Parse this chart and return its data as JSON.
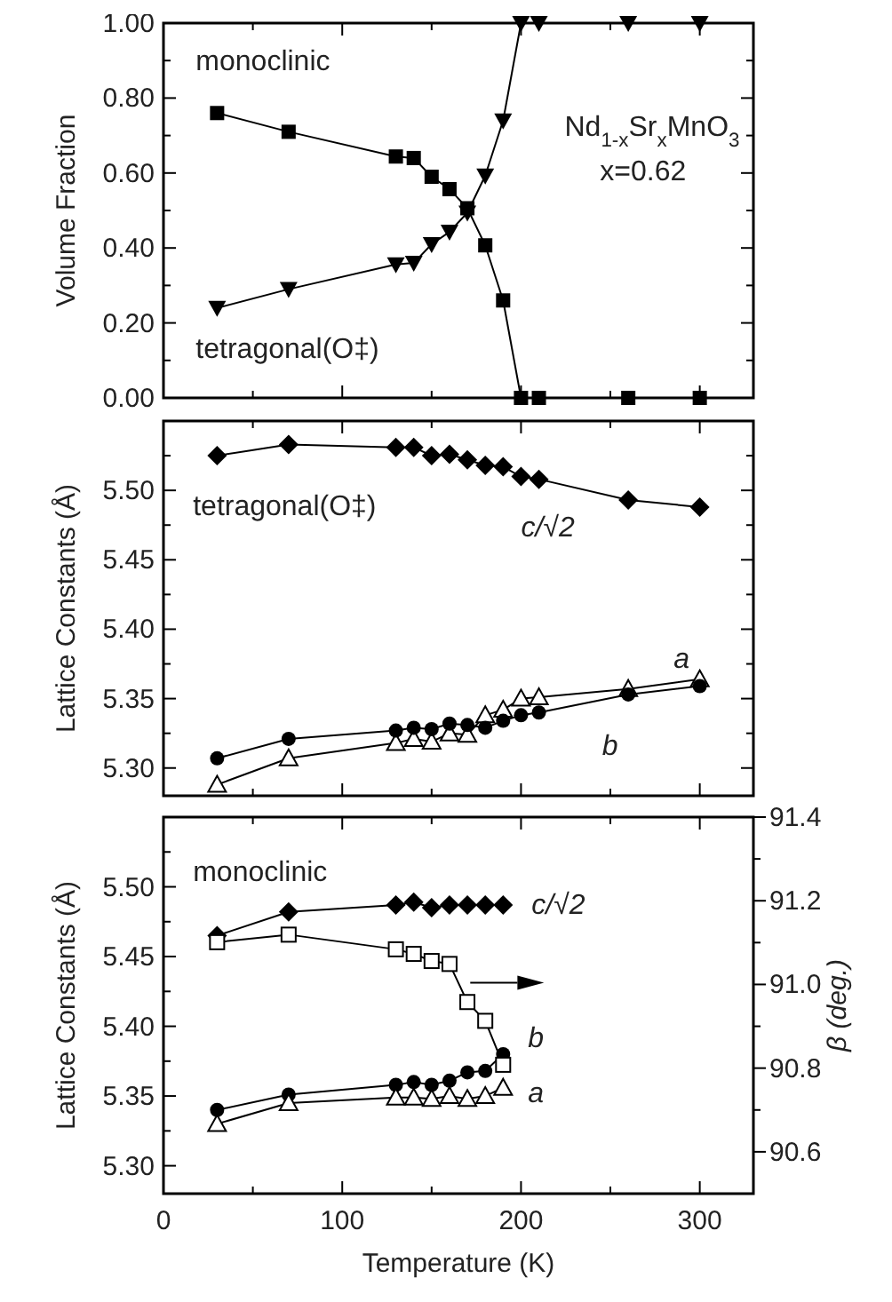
{
  "chart_data": [
    {
      "type": "line",
      "ylabel": "Volume Fraction",
      "xlim": [
        0,
        330
      ],
      "ylim": [
        0,
        1
      ],
      "tick_labels": "y",
      "xticks": [
        {
          "value": 0,
          "label": null
        },
        {
          "value": 50,
          "label": null
        },
        {
          "value": 100,
          "label": null
        },
        {
          "value": 150,
          "label": null
        },
        {
          "value": 200,
          "label": null
        },
        {
          "value": 250,
          "label": null
        },
        {
          "value": 300,
          "label": null
        }
      ],
      "yticks": [
        {
          "value": 0,
          "label": "0.00"
        },
        {
          "value": 0.1,
          "label": null
        },
        {
          "value": 0.2,
          "label": "0.20"
        },
        {
          "value": 0.3,
          "label": null
        },
        {
          "value": 0.4,
          "label": "0.40"
        },
        {
          "value": 0.5,
          "label": null
        },
        {
          "value": 0.6,
          "label": "0.60"
        },
        {
          "value": 0.7,
          "label": null
        },
        {
          "value": 0.8,
          "label": "0.80"
        },
        {
          "value": 0.9,
          "label": null
        },
        {
          "value": 1,
          "label": "1.00"
        }
      ],
      "x": [
        30,
        70,
        130,
        140,
        150,
        160,
        170,
        180,
        190,
        200,
        210,
        260,
        300
      ],
      "series": [
        {
          "name": "monoclinic",
          "color": "#000000",
          "marker": "square",
          "values": [
            0.76,
            0.71,
            0.644,
            0.64,
            0.59,
            0.557,
            0.506,
            0.407,
            0.26,
            0,
            0,
            0,
            0
          ]
        },
        {
          "name": "tetragonal(O‡)",
          "color": "#000000",
          "marker": "triangle-down",
          "values": [
            0.24,
            0.29,
            0.356,
            0.36,
            0.41,
            0.443,
            0.494,
            0.593,
            0.74,
            1,
            1,
            1,
            1
          ]
        }
      ],
      "annotations": [
        "Nd$_{1-x}$Sr$_{x}$MnO$_{3}$",
        "x=0.62"
      ]
    },
    {
      "type": "line",
      "ylabel": "Lattice Constants (Å)",
      "xlim": [
        0,
        330
      ],
      "ylim": [
        5.28,
        5.55
      ],
      "tick_labels": "y",
      "xticks": [
        {
          "value": 0,
          "label": null
        },
        {
          "value": 50,
          "label": null
        },
        {
          "value": 100,
          "label": null
        },
        {
          "value": 150,
          "label": null
        },
        {
          "value": 200,
          "label": null
        },
        {
          "value": 250,
          "label": null
        },
        {
          "value": 300,
          "label": null
        }
      ],
      "yticks": [
        {
          "value": 5.3,
          "label": "5.30"
        },
        {
          "value": 5.325,
          "label": null
        },
        {
          "value": 5.35,
          "label": "5.35"
        },
        {
          "value": 5.375,
          "label": null
        },
        {
          "value": 5.4,
          "label": "5.40"
        },
        {
          "value": 5.425,
          "label": null
        },
        {
          "value": 5.45,
          "label": "5.45"
        },
        {
          "value": 5.475,
          "label": null
        },
        {
          "value": 5.5,
          "label": "5.50"
        },
        {
          "value": 5.525,
          "label": null
        }
      ],
      "x": [
        30,
        70,
        130,
        140,
        150,
        160,
        170,
        180,
        190,
        200,
        210,
        260,
        300
      ],
      "series": [
        {
          "name": "c/√2",
          "color": "#000000",
          "marker": "diamond",
          "values": [
            5.525,
            5.533,
            5.531,
            5.531,
            5.525,
            5.526,
            5.522,
            5.518,
            5.517,
            5.51,
            5.508,
            5.493,
            5.488
          ]
        },
        {
          "name": "a",
          "color": "#000000",
          "marker": "triangle-open",
          "values": [
            5.288,
            5.307,
            5.318,
            5.321,
            5.319,
            5.325,
            5.324,
            5.338,
            5.342,
            5.35,
            5.351,
            5.357,
            5.364
          ]
        },
        {
          "name": "b",
          "color": "#000000",
          "marker": "circle",
          "values": [
            5.307,
            5.321,
            5.327,
            5.329,
            5.328,
            5.332,
            5.331,
            5.329,
            5.334,
            5.338,
            5.34,
            5.353,
            5.359
          ]
        }
      ],
      "annotations": [
        "tetragonal(O‡)"
      ]
    },
    {
      "type": "line",
      "xlabel": "Temperature (K)",
      "ylabel": "Lattice Constants (Å)",
      "y2label": "β (deg.)",
      "xlim": [
        0,
        330
      ],
      "ylim": [
        5.28,
        5.55
      ],
      "y2lim": [
        90.5,
        91.4
      ],
      "xticks": [
        0,
        {
          "value": 50,
          "label": null
        },
        100,
        {
          "value": 150,
          "label": null
        },
        200,
        {
          "value": 250,
          "label": null
        },
        300
      ],
      "yticks": [
        {
          "value": 5.3,
          "label": "5.30"
        },
        {
          "value": 5.325,
          "label": null
        },
        {
          "value": 5.35,
          "label": "5.35"
        },
        {
          "value": 5.375,
          "label": null
        },
        {
          "value": 5.4,
          "label": "5.40"
        },
        {
          "value": 5.425,
          "label": null
        },
        {
          "value": 5.45,
          "label": "5.45"
        },
        {
          "value": 5.475,
          "label": null
        },
        {
          "value": 5.5,
          "label": "5.50"
        },
        {
          "value": 5.525,
          "label": null
        }
      ],
      "y2ticks": [
        90.6,
        {
          "value": 90.7,
          "label": null
        },
        90.8,
        {
          "value": 90.9,
          "label": null
        },
        {
          "value": 91.0,
          "label": "91.0"
        },
        {
          "value": 91.1,
          "label": null
        },
        91.2,
        {
          "value": 91.3,
          "label": null
        },
        91.4
      ],
      "x": [
        30,
        70,
        130,
        140,
        150,
        160,
        170,
        180,
        190
      ],
      "series": [
        {
          "name": "c/√2",
          "color": "#000000",
          "marker": "diamond",
          "values": [
            5.465,
            5.482,
            5.487,
            5.489,
            5.485,
            5.487,
            5.487,
            5.487,
            5.487
          ]
        },
        {
          "name": "b",
          "color": "#000000",
          "marker": "circle",
          "values": [
            5.34,
            5.351,
            5.358,
            5.36,
            5.358,
            5.361,
            5.367,
            5.368,
            5.38
          ]
        },
        {
          "name": "a",
          "color": "#000000",
          "marker": "triangle-open",
          "values": [
            5.33,
            5.345,
            5.349,
            5.349,
            5.348,
            5.35,
            5.348,
            5.35,
            5.356
          ]
        },
        {
          "color": "#000000",
          "marker": "square-open",
          "axis": "y2",
          "values": [
            91.101,
            91.119,
            91.084,
            91.073,
            91.056,
            91.049,
            90.958,
            90.913,
            90.808
          ]
        }
      ],
      "annotations": [
        "monoclinic"
      ]
    }
  ]
}
